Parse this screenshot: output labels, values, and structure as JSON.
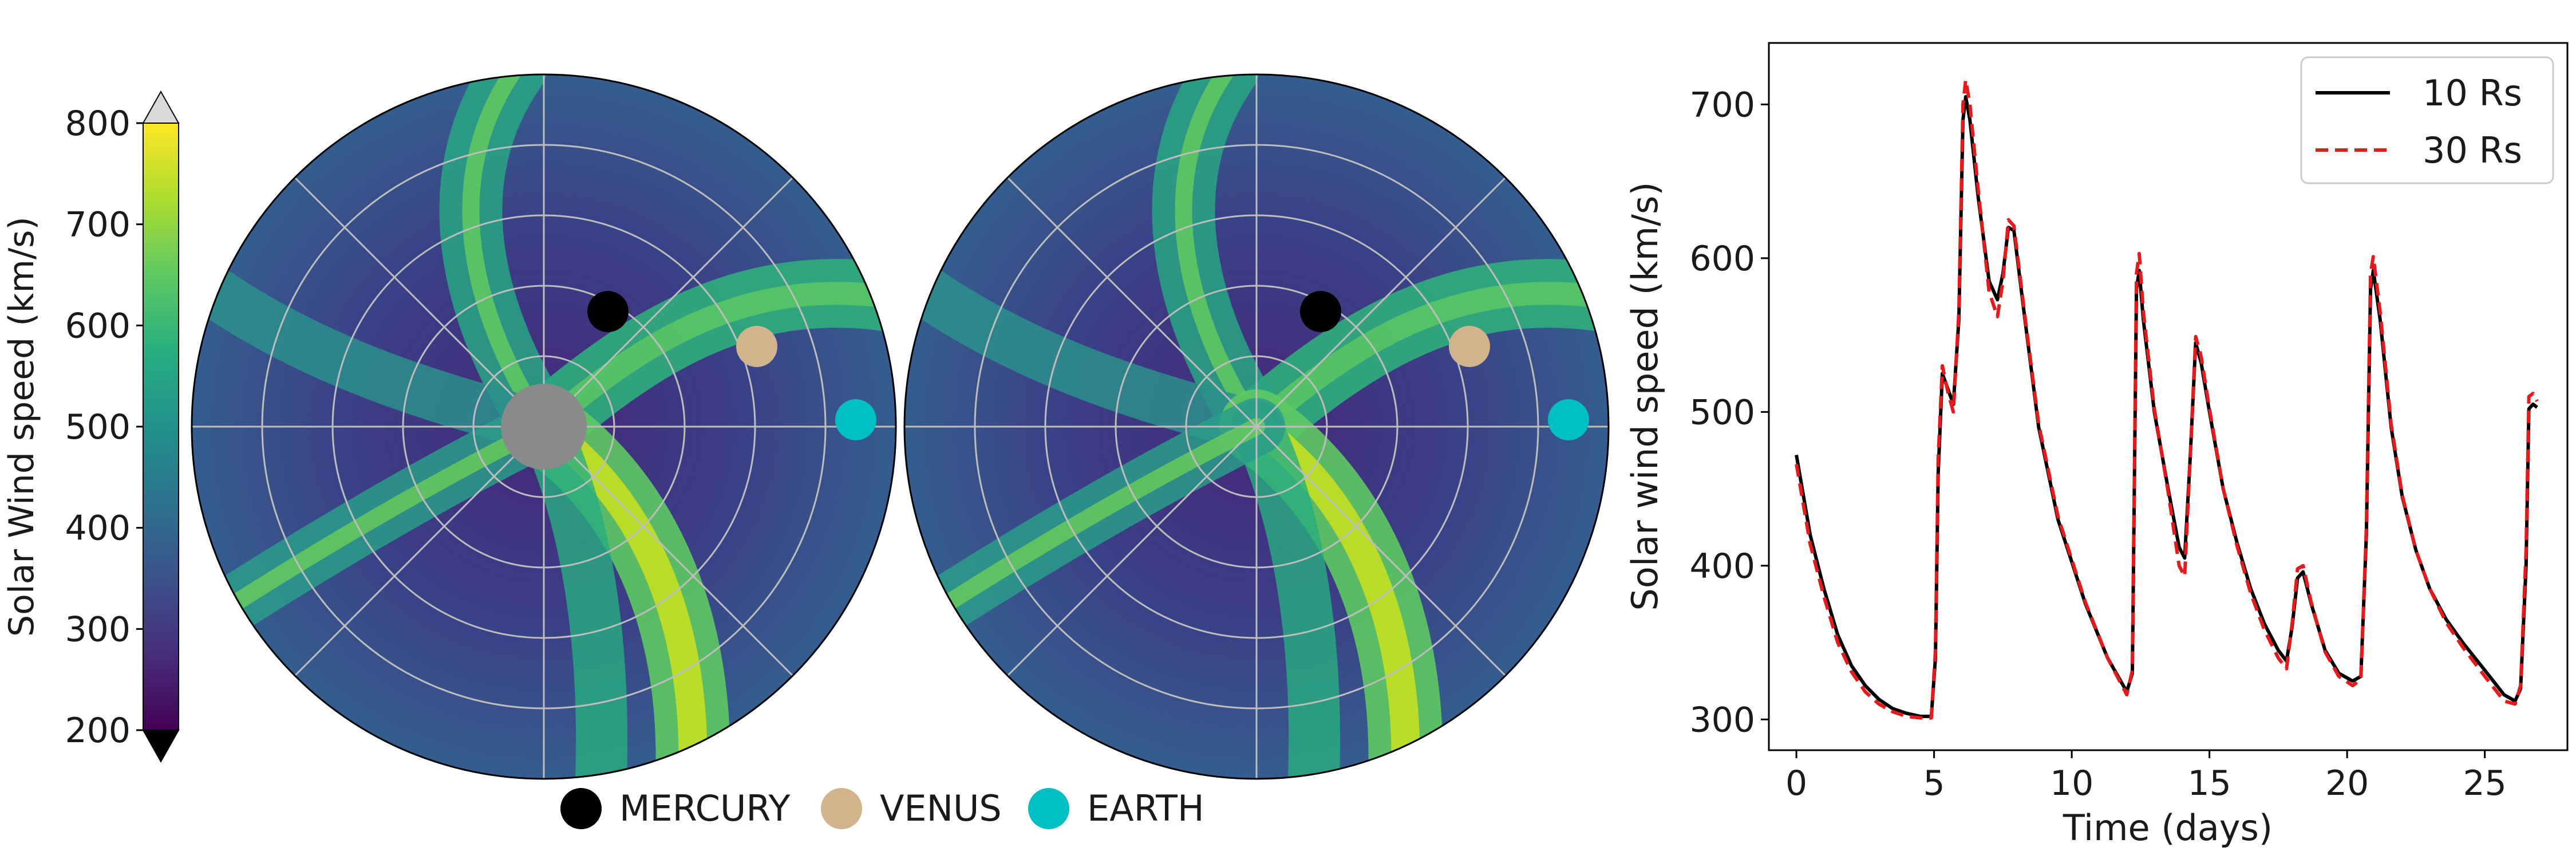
{
  "colorbar": {
    "label": "Solar Wind speed (km/s)",
    "ticks": [
      "800",
      "700",
      "600",
      "500",
      "400",
      "300",
      "200"
    ],
    "colormap": "viridis",
    "vmin": 200,
    "vmax": 800,
    "extend": "both",
    "extend_upper_color": "#d9d9d9",
    "extend_lower_color": "#000000"
  },
  "legend": {
    "items": [
      {
        "label": "MERCURY",
        "color": "#000000"
      },
      {
        "label": "VENUS",
        "color": "#d2b48c"
      },
      {
        "label": "EARTH",
        "color": "#00bfc4"
      }
    ]
  },
  "polar_maps": {
    "background_color": "#3b4f8a",
    "inner_disk_color": "#8a8a8a",
    "planets_angle_deg": {
      "mercury": 57,
      "venus": 23,
      "earth": 0
    },
    "planets_radius_frac": {
      "mercury": 0.34,
      "venus": 0.66,
      "earth": 0.89
    }
  },
  "chart_data": {
    "type": "line",
    "xlabel": "Time (days)",
    "ylabel": "Solar wind speed (km/s)",
    "xlim": [
      -1,
      28
    ],
    "ylim": [
      280,
      740
    ],
    "xticks": [
      "0",
      "5",
      "10",
      "15",
      "20",
      "25"
    ],
    "yticks": [
      "300",
      "400",
      "500",
      "600",
      "700"
    ],
    "legend_position": "upper-right",
    "series": [
      {
        "name": "10 Rs",
        "color": "#000000",
        "dash": "solid",
        "points": [
          [
            0,
            472
          ],
          [
            0.5,
            420
          ],
          [
            1,
            385
          ],
          [
            1.5,
            355
          ],
          [
            2,
            335
          ],
          [
            2.5,
            322
          ],
          [
            3,
            313
          ],
          [
            3.5,
            307
          ],
          [
            4,
            304
          ],
          [
            4.5,
            302
          ],
          [
            4.9,
            302
          ],
          [
            5.05,
            340
          ],
          [
            5.15,
            460
          ],
          [
            5.3,
            525
          ],
          [
            5.5,
            515
          ],
          [
            5.7,
            505
          ],
          [
            5.9,
            560
          ],
          [
            6.05,
            690
          ],
          [
            6.15,
            705
          ],
          [
            6.3,
            690
          ],
          [
            6.6,
            640
          ],
          [
            7,
            585
          ],
          [
            7.3,
            573
          ],
          [
            7.5,
            590
          ],
          [
            7.7,
            620
          ],
          [
            7.9,
            618
          ],
          [
            8.3,
            560
          ],
          [
            8.8,
            490
          ],
          [
            9.5,
            430
          ],
          [
            10.5,
            375
          ],
          [
            11.3,
            340
          ],
          [
            12,
            318
          ],
          [
            12.2,
            330
          ],
          [
            12.35,
            580
          ],
          [
            12.45,
            592
          ],
          [
            12.6,
            560
          ],
          [
            13,
            500
          ],
          [
            13.5,
            450
          ],
          [
            13.9,
            412
          ],
          [
            14.1,
            405
          ],
          [
            14.3,
            470
          ],
          [
            14.5,
            545
          ],
          [
            14.7,
            532
          ],
          [
            15,
            500
          ],
          [
            15.5,
            450
          ],
          [
            16,
            415
          ],
          [
            16.5,
            385
          ],
          [
            17,
            362
          ],
          [
            17.5,
            345
          ],
          [
            17.8,
            338
          ],
          [
            18,
            360
          ],
          [
            18.2,
            392
          ],
          [
            18.4,
            396
          ],
          [
            18.7,
            375
          ],
          [
            19.2,
            345
          ],
          [
            19.7,
            330
          ],
          [
            20.2,
            325
          ],
          [
            20.5,
            328
          ],
          [
            20.7,
            420
          ],
          [
            20.85,
            580
          ],
          [
            20.95,
            592
          ],
          [
            21.2,
            560
          ],
          [
            21.6,
            490
          ],
          [
            22,
            445
          ],
          [
            22.5,
            410
          ],
          [
            23,
            385
          ],
          [
            23.6,
            365
          ],
          [
            24.2,
            350
          ],
          [
            25,
            332
          ],
          [
            25.7,
            316
          ],
          [
            26.1,
            312
          ],
          [
            26.3,
            320
          ],
          [
            26.5,
            400
          ],
          [
            26.6,
            502
          ],
          [
            26.75,
            505
          ],
          [
            26.9,
            503
          ]
        ]
      },
      {
        "name": "30 Rs",
        "color": "#e41a1c",
        "dash": "dashed",
        "points": [
          [
            0,
            466
          ],
          [
            0.5,
            414
          ],
          [
            1,
            380
          ],
          [
            1.5,
            350
          ],
          [
            2,
            331
          ],
          [
            2.5,
            318
          ],
          [
            3,
            310
          ],
          [
            3.5,
            305
          ],
          [
            4,
            302
          ],
          [
            4.5,
            301
          ],
          [
            4.9,
            301
          ],
          [
            5.05,
            345
          ],
          [
            5.15,
            470
          ],
          [
            5.3,
            530
          ],
          [
            5.5,
            513
          ],
          [
            5.7,
            500
          ],
          [
            5.9,
            565
          ],
          [
            6.05,
            700
          ],
          [
            6.15,
            716
          ],
          [
            6.3,
            700
          ],
          [
            6.6,
            645
          ],
          [
            7,
            578
          ],
          [
            7.3,
            562
          ],
          [
            7.5,
            585
          ],
          [
            7.7,
            625
          ],
          [
            7.9,
            621
          ],
          [
            8.3,
            562
          ],
          [
            8.8,
            492
          ],
          [
            9.5,
            432
          ],
          [
            10.5,
            376
          ],
          [
            11.3,
            340
          ],
          [
            12,
            316
          ],
          [
            12.2,
            332
          ],
          [
            12.35,
            590
          ],
          [
            12.45,
            603
          ],
          [
            12.6,
            565
          ],
          [
            13,
            502
          ],
          [
            13.5,
            448
          ],
          [
            13.9,
            400
          ],
          [
            14.1,
            393
          ],
          [
            14.3,
            470
          ],
          [
            14.5,
            549
          ],
          [
            14.7,
            536
          ],
          [
            15,
            502
          ],
          [
            15.5,
            450
          ],
          [
            16,
            413
          ],
          [
            16.5,
            382
          ],
          [
            17,
            358
          ],
          [
            17.5,
            340
          ],
          [
            17.8,
            333
          ],
          [
            18,
            362
          ],
          [
            18.2,
            398
          ],
          [
            18.4,
            400
          ],
          [
            18.7,
            376
          ],
          [
            19.2,
            344
          ],
          [
            19.7,
            328
          ],
          [
            20.2,
            322
          ],
          [
            20.5,
            326
          ],
          [
            20.7,
            425
          ],
          [
            20.85,
            590
          ],
          [
            20.95,
            601
          ],
          [
            21.2,
            565
          ],
          [
            21.6,
            492
          ],
          [
            22,
            446
          ],
          [
            22.5,
            410
          ],
          [
            23,
            385
          ],
          [
            23.6,
            363
          ],
          [
            24.2,
            347
          ],
          [
            25,
            328
          ],
          [
            25.7,
            312
          ],
          [
            26.1,
            310
          ],
          [
            26.3,
            322
          ],
          [
            26.5,
            410
          ],
          [
            26.6,
            510
          ],
          [
            26.75,
            512
          ],
          [
            26.9,
            507
          ]
        ]
      }
    ]
  }
}
